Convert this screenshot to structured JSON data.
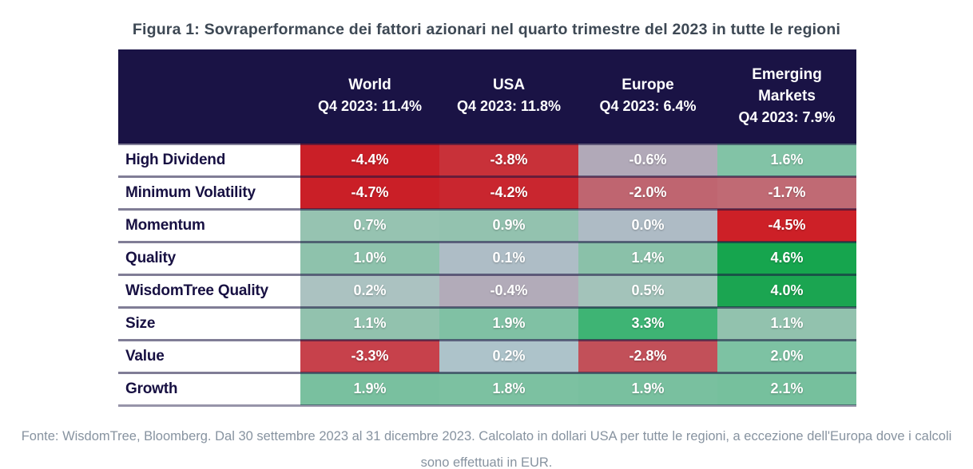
{
  "title": "Figura 1: Sovraperformance dei fattori azionari nel quarto trimestre del 2023 in tutte le regioni",
  "source_note": "Fonte: WisdomTree, Bloomberg. Dal 30 settembre 2023 al 31 dicembre 2023. Calcolato in dollari USA per tutte le regioni, a eccezione dell'Europa dove i calcoli sono effettuati in EUR.",
  "header_bg": "#1a1345",
  "table": {
    "columns": [
      {
        "label": "World",
        "sub": "Q4 2023: 11.4%"
      },
      {
        "label": "USA",
        "sub": "Q4 2023: 11.8%"
      },
      {
        "label": "Europe",
        "sub": "Q4 2023: 6.4%"
      },
      {
        "label": "Emerging Markets",
        "sub": "Q4 2023: 7.9%"
      }
    ],
    "rows": [
      {
        "label": "High Dividend",
        "cells": [
          {
            "text": "-4.4%",
            "bg": "#ca1f27"
          },
          {
            "text": "-3.8%",
            "bg": "#c83139"
          },
          {
            "text": "-0.6%",
            "bg": "#b1a9b8"
          },
          {
            "text": "1.6%",
            "bg": "#82c3a6"
          }
        ]
      },
      {
        "label": "Minimum Volatility",
        "cells": [
          {
            "text": "-4.7%",
            "bg": "#ca1f27"
          },
          {
            "text": "-4.2%",
            "bg": "#c9262f"
          },
          {
            "text": "-2.0%",
            "bg": "#bf6570"
          },
          {
            "text": "-1.7%",
            "bg": "#c06a74"
          }
        ]
      },
      {
        "label": "Momentum",
        "cells": [
          {
            "text": "0.7%",
            "bg": "#96c3b1"
          },
          {
            "text": "0.9%",
            "bg": "#93c2af"
          },
          {
            "text": "0.0%",
            "bg": "#aebbc5"
          },
          {
            "text": "-4.5%",
            "bg": "#cd2027"
          }
        ]
      },
      {
        "label": "Quality",
        "cells": [
          {
            "text": "1.0%",
            "bg": "#8ec2ac"
          },
          {
            "text": "0.1%",
            "bg": "#aebdc6"
          },
          {
            "text": "1.4%",
            "bg": "#8ac1a9"
          },
          {
            "text": "4.6%",
            "bg": "#16a54e"
          }
        ]
      },
      {
        "label": "WisdomTree Quality",
        "cells": [
          {
            "text": "0.2%",
            "bg": "#abc2c1"
          },
          {
            "text": "-0.4%",
            "bg": "#b2abb9"
          },
          {
            "text": "0.5%",
            "bg": "#a3c3ba"
          },
          {
            "text": "4.0%",
            "bg": "#1ba551"
          }
        ]
      },
      {
        "label": "Size",
        "cells": [
          {
            "text": "1.1%",
            "bg": "#92c2ae"
          },
          {
            "text": "1.9%",
            "bg": "#80c1a4"
          },
          {
            "text": "3.3%",
            "bg": "#3eb474"
          },
          {
            "text": "1.1%",
            "bg": "#92c2ae"
          }
        ]
      },
      {
        "label": "Value",
        "cells": [
          {
            "text": "-3.3%",
            "bg": "#c7414b"
          },
          {
            "text": "0.2%",
            "bg": "#adc3ca"
          },
          {
            "text": "-2.8%",
            "bg": "#c25059"
          },
          {
            "text": "2.0%",
            "bg": "#7dc2a3"
          }
        ]
      },
      {
        "label": "Growth",
        "cells": [
          {
            "text": "1.9%",
            "bg": "#79c09f"
          },
          {
            "text": "1.8%",
            "bg": "#7cc1a1"
          },
          {
            "text": "1.9%",
            "bg": "#79c09f"
          },
          {
            "text": "2.1%",
            "bg": "#76c09d"
          }
        ]
      }
    ]
  },
  "chart_data": {
    "type": "heatmap",
    "title": "Figura 1: Sovraperformance dei fattori azionari nel quarto trimestre del 2023 in tutte le regioni",
    "columns": [
      "World",
      "USA",
      "Europe",
      "Emerging Markets"
    ],
    "column_benchmark_q4_2023_pct": [
      11.4,
      11.8,
      6.4,
      7.9
    ],
    "rows": [
      "High Dividend",
      "Minimum Volatility",
      "Momentum",
      "Quality",
      "WisdomTree Quality",
      "Size",
      "Value",
      "Growth"
    ],
    "values_pct": [
      [
        -4.4,
        -3.8,
        -0.6,
        1.6
      ],
      [
        -4.7,
        -4.2,
        -2.0,
        -1.7
      ],
      [
        0.7,
        0.9,
        0.0,
        -4.5
      ],
      [
        1.0,
        0.1,
        1.4,
        4.6
      ],
      [
        0.2,
        -0.4,
        0.5,
        4.0
      ],
      [
        1.1,
        1.9,
        3.3,
        1.1
      ],
      [
        -3.3,
        0.2,
        -2.8,
        2.0
      ],
      [
        1.9,
        1.8,
        1.9,
        2.1
      ]
    ],
    "color_scale": "red = negative relative performance, gray = near zero, green = positive relative performance",
    "legend_position": "none",
    "source": "Fonte: WisdomTree, Bloomberg. Dal 30 settembre 2023 al 31 dicembre 2023. Calcolato in dollari USA per tutte le regioni, a eccezione dell'Europa dove i calcoli sono effettuati in EUR."
  }
}
